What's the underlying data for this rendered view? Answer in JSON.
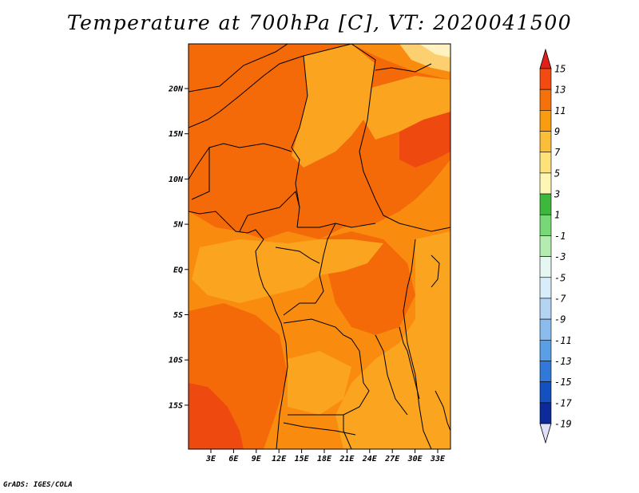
{
  "title": "Temperature at 700hPa [C], VT: 2020041500",
  "credit": "GrADS: IGES/COLA",
  "map": {
    "lat_labels": [
      "20N",
      "15N",
      "10N",
      "5N",
      "EQ",
      "5S",
      "10S",
      "15S"
    ],
    "lon_labels": [
      "3E",
      "6E",
      "9E",
      "12E",
      "15E",
      "18E",
      "21E",
      "24E",
      "27E",
      "30E",
      "33E"
    ]
  },
  "colorbar": {
    "labels": [
      "15",
      "13",
      "11",
      "9",
      "7",
      "5",
      "3",
      "1",
      "-1",
      "-3",
      "-5",
      "-7",
      "-9",
      "-11",
      "-13",
      "-15",
      "-17",
      "-19"
    ],
    "colors": [
      "#e0201a",
      "#f24a10",
      "#f5720a",
      "#f99c10",
      "#fbbe38",
      "#fde27a",
      "#fdf6b4",
      "#3cb83c",
      "#78d878",
      "#b4ecb0",
      "#e6f6f0",
      "#d8ecfa",
      "#b4d4f4",
      "#8cbcec",
      "#5a9ee4",
      "#3278d8",
      "#1450c0",
      "#0c2a9a",
      "#0a0a6a",
      "#e0e0f8"
    ]
  },
  "colors": {
    "bg_field": "#f98c0e",
    "warm_field": "#f56a08",
    "cool_field": "#faa420",
    "coast": "#000000"
  }
}
